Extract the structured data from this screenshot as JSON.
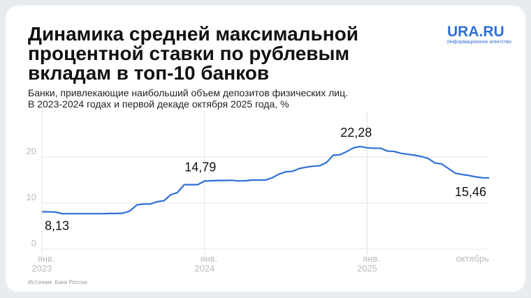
{
  "chart_data": {
    "type": "line",
    "title": [
      "Динамика средней максимальной",
      "процентной ставки по рублевым",
      "вкладам в топ-10 банков"
    ],
    "subtitle": [
      "Банки, привлекающие наибольший объем депозитов физических лиц.",
      "В 2023-2024 годах и первой декаде октября 2025 года, %"
    ],
    "logo": "URA.RU",
    "logo_caption": "Информационное агентство",
    "source": "Источник: Банк России",
    "categories": [
      "янв. 2023",
      null,
      null,
      null,
      null,
      null,
      null,
      null,
      null,
      null,
      null,
      null,
      null,
      null,
      null,
      null,
      null,
      null,
      null,
      null,
      null,
      null,
      null,
      null,
      "янв. 2024",
      null,
      null,
      null,
      null,
      null,
      null,
      null,
      null,
      null,
      null,
      null,
      null,
      null,
      null,
      null,
      null,
      null,
      null,
      null,
      null,
      null,
      null,
      null,
      "янв. 2025",
      null,
      null,
      null,
      null,
      null,
      null,
      null,
      null,
      null,
      null,
      null,
      null,
      null,
      null,
      null,
      null,
      null,
      "октябрь"
    ],
    "series": [
      {
        "color": "#2f6fd6",
        "values": [
          8.13,
          8.1,
          8.05,
          7.7,
          7.7,
          7.7,
          7.7,
          7.7,
          7.7,
          7.7,
          7.75,
          7.75,
          7.8,
          8.3,
          9.6,
          9.8,
          9.8,
          10.3,
          10.5,
          11.8,
          12.3,
          14.0,
          14.0,
          14.0,
          14.79,
          14.85,
          14.9,
          14.9,
          14.95,
          14.8,
          14.85,
          15.0,
          15.0,
          15.0,
          15.5,
          16.3,
          16.8,
          16.9,
          17.5,
          17.8,
          18.0,
          18.1,
          18.8,
          20.4,
          20.5,
          21.2,
          22.0,
          22.28,
          22.0,
          21.9,
          21.9,
          21.3,
          21.2,
          20.8,
          20.6,
          20.4,
          20.1,
          19.7,
          18.7,
          18.5,
          17.5,
          16.5,
          16.2,
          16.0,
          15.7,
          15.5,
          15.46
        ],
        "value_labels": [
          "8,13",
          null,
          null,
          null,
          null,
          null,
          null,
          null,
          null,
          null,
          null,
          null,
          null,
          null,
          null,
          null,
          null,
          null,
          null,
          null,
          null,
          null,
          null,
          null,
          "14,79",
          null,
          null,
          null,
          null,
          null,
          null,
          null,
          null,
          null,
          null,
          null,
          null,
          null,
          null,
          null,
          null,
          null,
          null,
          null,
          null,
          null,
          null,
          "22,28",
          null,
          null,
          null,
          null,
          null,
          null,
          null,
          null,
          null,
          null,
          null,
          null,
          null,
          null,
          null,
          null,
          null,
          null,
          "15,46"
        ]
      }
    ],
    "ylim": [
      0,
      30
    ],
    "yticks": [
      0,
      10,
      20
    ],
    "grid": true
  }
}
